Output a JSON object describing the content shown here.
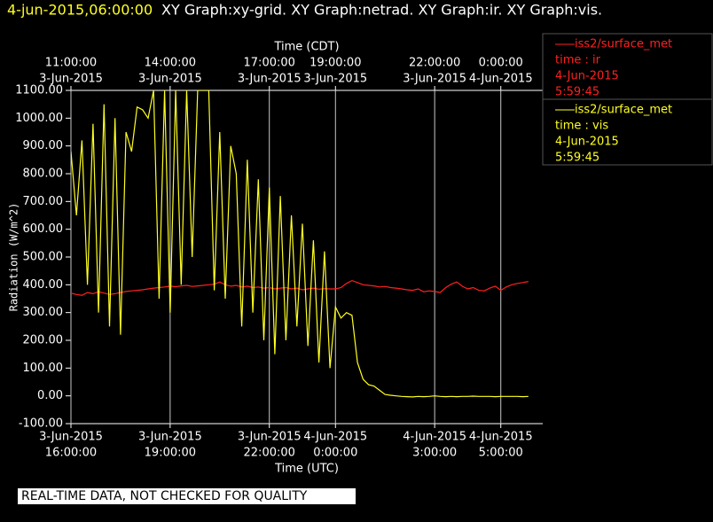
{
  "chart_data": {
    "type": "line",
    "header": {
      "time": "4-jun-2015,06:00:00",
      "graphs": "XY Graph:xy-grid.  XY Graph:netrad.  XY Graph:ir.  XY Graph:vis."
    },
    "ylabel": "Radiation (W/m^2)",
    "xlabel": "Time (UTC)",
    "x2label": "Time (CDT)",
    "footer": "REAL-TIME DATA, NOT CHECKED FOR QUALITY",
    "ylim": [
      -100,
      1100
    ],
    "yticks": [
      {
        "value": -100,
        "label": "-100.00"
      },
      {
        "value": 0,
        "label": "0.00"
      },
      {
        "value": 100,
        "label": "100.00"
      },
      {
        "value": 200,
        "label": "200.00"
      },
      {
        "value": 300,
        "label": "300.00"
      },
      {
        "value": 400,
        "label": "400.00"
      },
      {
        "value": 500,
        "label": "500.00"
      },
      {
        "value": 600,
        "label": "600.00"
      },
      {
        "value": 700,
        "label": "700.00"
      },
      {
        "value": 800,
        "label": "800.00"
      },
      {
        "value": 900,
        "label": "900.00"
      },
      {
        "value": 1000,
        "label": "1000.00"
      },
      {
        "value": 1100,
        "label": "1100.00"
      }
    ],
    "xlim": [
      "2015-06-03T16:00",
      "2015-06-04T06:00"
    ],
    "xticks": [
      {
        "value": "2015-06-03T16:00",
        "label": [
          "3-Jun-2015",
          "16:00:00"
        ]
      },
      {
        "value": "2015-06-03T19:00",
        "label": [
          "3-Jun-2015",
          "19:00:00"
        ]
      },
      {
        "value": "2015-06-03T22:00",
        "label": [
          "3-Jun-2015",
          "22:00:00"
        ]
      },
      {
        "value": "2015-06-04T00:00",
        "label": [
          "4-Jun-2015",
          "0:00:00"
        ]
      },
      {
        "value": "2015-06-04T03:00",
        "label": [
          "4-Jun-2015",
          "3:00:00"
        ]
      },
      {
        "value": "2015-06-04T05:00",
        "label": [
          "4-Jun-2015",
          "5:00:00"
        ]
      }
    ],
    "x2ticks": [
      {
        "value": "2015-06-03T16:00",
        "label": [
          "11:00:00",
          "3-Jun-2015"
        ]
      },
      {
        "value": "2015-06-03T19:00",
        "label": [
          "14:00:00",
          "3-Jun-2015"
        ]
      },
      {
        "value": "2015-06-03T22:00",
        "label": [
          "17:00:00",
          "3-Jun-2015"
        ]
      },
      {
        "value": "2015-06-04T00:00",
        "label": [
          "19:00:00",
          "3-Jun-2015"
        ]
      },
      {
        "value": "2015-06-04T03:00",
        "label": [
          "22:00:00",
          "3-Jun-2015"
        ]
      },
      {
        "value": "2015-06-04T05:00",
        "label": [
          "0:00:00",
          "4-Jun-2015"
        ]
      }
    ],
    "grid": true,
    "x": [
      "2015-06-03T16:00",
      "2015-06-03T16:10",
      "2015-06-03T16:20",
      "2015-06-03T16:30",
      "2015-06-03T16:40",
      "2015-06-03T16:50",
      "2015-06-03T17:00",
      "2015-06-03T17:10",
      "2015-06-03T17:20",
      "2015-06-03T17:30",
      "2015-06-03T17:40",
      "2015-06-03T17:50",
      "2015-06-03T18:00",
      "2015-06-03T18:10",
      "2015-06-03T18:20",
      "2015-06-03T18:30",
      "2015-06-03T18:40",
      "2015-06-03T18:50",
      "2015-06-03T19:00",
      "2015-06-03T19:10",
      "2015-06-03T19:20",
      "2015-06-03T19:30",
      "2015-06-03T19:40",
      "2015-06-03T19:50",
      "2015-06-03T20:00",
      "2015-06-03T20:10",
      "2015-06-03T20:20",
      "2015-06-03T20:30",
      "2015-06-03T20:40",
      "2015-06-03T20:50",
      "2015-06-03T21:00",
      "2015-06-03T21:10",
      "2015-06-03T21:20",
      "2015-06-03T21:30",
      "2015-06-03T21:40",
      "2015-06-03T21:50",
      "2015-06-03T22:00",
      "2015-06-03T22:10",
      "2015-06-03T22:20",
      "2015-06-03T22:30",
      "2015-06-03T22:40",
      "2015-06-03T22:50",
      "2015-06-03T23:00",
      "2015-06-03T23:10",
      "2015-06-03T23:20",
      "2015-06-03T23:30",
      "2015-06-03T23:40",
      "2015-06-03T23:50",
      "2015-06-04T00:00",
      "2015-06-04T00:10",
      "2015-06-04T00:20",
      "2015-06-04T00:30",
      "2015-06-04T00:40",
      "2015-06-04T00:50",
      "2015-06-04T01:00",
      "2015-06-04T01:10",
      "2015-06-04T01:20",
      "2015-06-04T01:30",
      "2015-06-04T01:40",
      "2015-06-04T01:50",
      "2015-06-04T02:00",
      "2015-06-04T02:10",
      "2015-06-04T02:20",
      "2015-06-04T02:30",
      "2015-06-04T02:40",
      "2015-06-04T02:50",
      "2015-06-04T03:00",
      "2015-06-04T03:10",
      "2015-06-04T03:20",
      "2015-06-04T03:30",
      "2015-06-04T03:40",
      "2015-06-04T03:50",
      "2015-06-04T04:00",
      "2015-06-04T04:10",
      "2015-06-04T04:20",
      "2015-06-04T04:30",
      "2015-06-04T04:40",
      "2015-06-04T04:50",
      "2015-06-04T05:00",
      "2015-06-04T05:10",
      "2015-06-04T05:20",
      "2015-06-04T05:30",
      "2015-06-04T05:40",
      "2015-06-04T05:50"
    ],
    "series": [
      {
        "name": "iss2/surface_met",
        "field": "time : ir",
        "date": "4-Jun-2015",
        "time": "5:59:45",
        "color": "#ff2020",
        "values": [
          370,
          365,
          362,
          372,
          368,
          375,
          370,
          365,
          368,
          372,
          376,
          378,
          380,
          382,
          385,
          388,
          390,
          392,
          395,
          393,
          396,
          398,
          394,
          396,
          398,
          400,
          402,
          410,
          400,
          395,
          398,
          392,
          395,
          390,
          392,
          388,
          390,
          385,
          388,
          390,
          385,
          388,
          382,
          385,
          388,
          384,
          386,
          385,
          385,
          390,
          405,
          415,
          408,
          400,
          398,
          396,
          392,
          394,
          390,
          388,
          385,
          382,
          380,
          385,
          375,
          378,
          376,
          372,
          390,
          402,
          410,
          395,
          385,
          390,
          380,
          378,
          388,
          395,
          380,
          392,
          400,
          405,
          408,
          412
        ]
      },
      {
        "name": "iss2/surface_met",
        "field": "time : vis",
        "date": "4-Jun-2015",
        "time": "5:59:45",
        "color": "#ffff20",
        "values": [
          880,
          650,
          920,
          400,
          980,
          300,
          1050,
          250,
          1000,
          220,
          950,
          880,
          1040,
          1030,
          1000,
          1100,
          350,
          1100,
          300,
          1100,
          400,
          1100,
          500,
          1100,
          1100,
          1100,
          380,
          950,
          350,
          900,
          800,
          250,
          850,
          300,
          780,
          200,
          750,
          150,
          720,
          200,
          650,
          250,
          620,
          180,
          560,
          120,
          520,
          100,
          320,
          280,
          300,
          290,
          120,
          60,
          40,
          35,
          20,
          5,
          2,
          0,
          -2,
          -3,
          -4,
          -2,
          -3,
          -2,
          0,
          -2,
          -3,
          -2,
          -3,
          -2,
          -2,
          -1,
          -2,
          -2,
          -2,
          -3,
          -2,
          -2,
          -2,
          -2,
          -3,
          -2
        ]
      }
    ]
  }
}
